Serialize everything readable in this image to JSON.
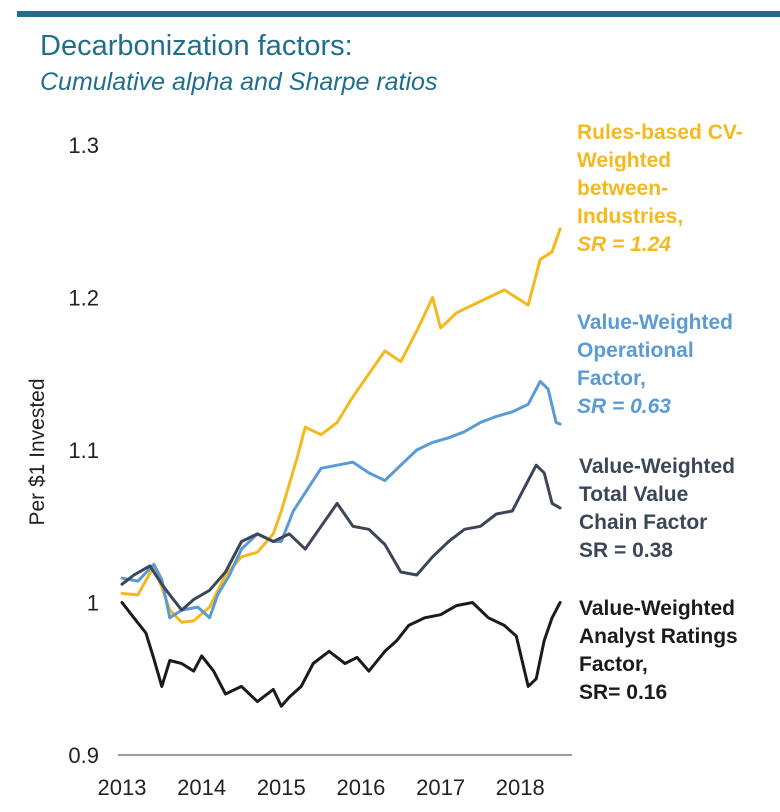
{
  "header": {
    "title": "Decarbonization factors:",
    "subtitle": "Cumulative alpha and Sharpe ratios"
  },
  "colors": {
    "title": "#1f6f8b",
    "rule": "#1f6f8b",
    "axis": "#9a9a9a",
    "yellow": "#f4b91c",
    "blue": "#5b9bd5",
    "slate": "#3c4657",
    "black": "#1b1b1b"
  },
  "chart_data": {
    "type": "line",
    "title": "Decarbonization factors:",
    "subtitle": "Cumulative alpha and Sharpe ratios",
    "xlabel": "",
    "ylabel": "Per $1 Invested",
    "xlim": [
      2013,
      2018.75
    ],
    "ylim": [
      0.9,
      1.3
    ],
    "x_ticks": [
      "2013",
      "2014",
      "2015",
      "2016",
      "2017",
      "2018"
    ],
    "y_ticks": [
      "0.9",
      "1",
      "1.1",
      "1.2",
      "1.3"
    ],
    "series": [
      {
        "name": "Rules-based CV-Weighted between-Industries",
        "label_lines": [
          "Rules-based CV-",
          "Weighted",
          "between-",
          "Industries,"
        ],
        "sr_text": "SR = 1.24",
        "color_key": "yellow",
        "x": [
          2013.0,
          2013.2,
          2013.4,
          2013.5,
          2013.6,
          2013.75,
          2013.9,
          2014.1,
          2014.3,
          2014.5,
          2014.7,
          2014.9,
          2015.0,
          2015.2,
          2015.3,
          2015.5,
          2015.7,
          2015.9,
          2016.1,
          2016.3,
          2016.5,
          2016.7,
          2016.9,
          2017.0,
          2017.2,
          2017.4,
          2017.6,
          2017.8,
          2017.95,
          2018.1,
          2018.25,
          2018.4,
          2018.5
        ],
        "values": [
          1.006,
          1.005,
          1.024,
          1.01,
          0.995,
          0.987,
          0.988,
          0.997,
          1.018,
          1.03,
          1.033,
          1.045,
          1.06,
          1.095,
          1.115,
          1.11,
          1.118,
          1.135,
          1.15,
          1.165,
          1.158,
          1.178,
          1.2,
          1.18,
          1.19,
          1.195,
          1.2,
          1.205,
          1.2,
          1.195,
          1.225,
          1.23,
          1.245
        ]
      },
      {
        "name": "Value-Weighted Operational Factor",
        "label_lines": [
          "Value-Weighted",
          "Operational",
          "Factor,"
        ],
        "sr_text": "SR = 0.63",
        "color_key": "blue",
        "x": [
          2013.0,
          2013.2,
          2013.4,
          2013.5,
          2013.6,
          2013.75,
          2013.95,
          2014.1,
          2014.2,
          2014.35,
          2014.5,
          2014.7,
          2014.9,
          2015.0,
          2015.15,
          2015.3,
          2015.5,
          2015.7,
          2015.9,
          2016.1,
          2016.3,
          2016.5,
          2016.7,
          2016.9,
          2017.1,
          2017.3,
          2017.5,
          2017.7,
          2017.9,
          2018.1,
          2018.25,
          2018.35,
          2018.45,
          2018.5
        ],
        "values": [
          1.016,
          1.014,
          1.025,
          1.015,
          0.99,
          0.995,
          0.997,
          0.99,
          1.005,
          1.018,
          1.035,
          1.045,
          1.04,
          1.04,
          1.06,
          1.072,
          1.088,
          1.09,
          1.092,
          1.085,
          1.08,
          1.09,
          1.1,
          1.105,
          1.108,
          1.112,
          1.118,
          1.122,
          1.125,
          1.13,
          1.145,
          1.14,
          1.118,
          1.117
        ]
      },
      {
        "name": "Value-Weighted Total Value Chain Factor",
        "label_lines": [
          "Value-Weighted",
          "Total Value",
          "Chain Factor"
        ],
        "sr_text": "SR = 0.38",
        "color_key": "slate",
        "x": [
          2013.0,
          2013.15,
          2013.35,
          2013.5,
          2013.6,
          2013.75,
          2013.9,
          2014.1,
          2014.3,
          2014.5,
          2014.7,
          2014.9,
          2015.1,
          2015.3,
          2015.5,
          2015.7,
          2015.9,
          2016.1,
          2016.3,
          2016.5,
          2016.7,
          2016.9,
          2017.1,
          2017.3,
          2017.5,
          2017.7,
          2017.9,
          2018.05,
          2018.2,
          2018.3,
          2018.4,
          2018.5
        ],
        "values": [
          1.012,
          1.018,
          1.024,
          1.012,
          1.005,
          0.995,
          1.002,
          1.008,
          1.02,
          1.04,
          1.045,
          1.04,
          1.045,
          1.035,
          1.05,
          1.065,
          1.05,
          1.048,
          1.038,
          1.02,
          1.018,
          1.03,
          1.04,
          1.048,
          1.05,
          1.058,
          1.06,
          1.075,
          1.09,
          1.085,
          1.065,
          1.062
        ]
      },
      {
        "name": "Value-Weighted Analyst Ratings Factor",
        "label_lines": [
          "Value-Weighted",
          "Analyst Ratings",
          "Factor,"
        ],
        "sr_text": "SR= 0.16",
        "color_key": "black",
        "x": [
          2013.0,
          2013.15,
          2013.3,
          2013.4,
          2013.5,
          2013.6,
          2013.75,
          2013.9,
          2014.0,
          2014.15,
          2014.3,
          2014.5,
          2014.7,
          2014.9,
          2015.0,
          2015.1,
          2015.25,
          2015.4,
          2015.6,
          2015.8,
          2015.95,
          2016.1,
          2016.3,
          2016.45,
          2016.6,
          2016.8,
          2017.0,
          2017.2,
          2017.4,
          2017.6,
          2017.8,
          2017.95,
          2018.1,
          2018.2,
          2018.3,
          2018.4,
          2018.5
        ],
        "values": [
          1.0,
          0.99,
          0.98,
          0.963,
          0.945,
          0.962,
          0.96,
          0.955,
          0.965,
          0.955,
          0.94,
          0.945,
          0.935,
          0.943,
          0.932,
          0.938,
          0.945,
          0.96,
          0.968,
          0.96,
          0.964,
          0.955,
          0.968,
          0.975,
          0.985,
          0.99,
          0.992,
          0.998,
          1.0,
          0.99,
          0.985,
          0.978,
          0.945,
          0.95,
          0.975,
          0.99,
          1.0
        ]
      }
    ]
  }
}
